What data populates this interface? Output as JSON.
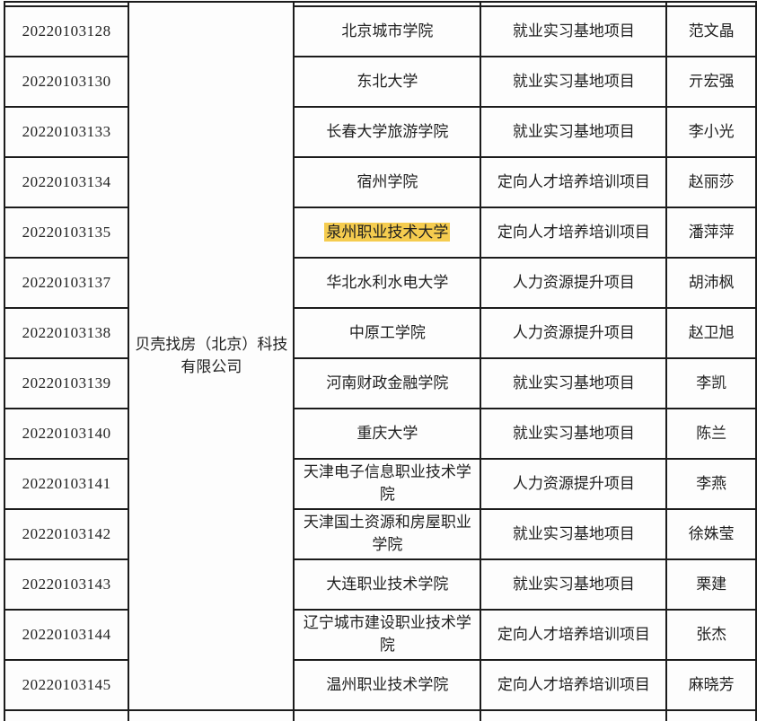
{
  "table": {
    "company": "贝壳找房（北京）科技有限公司",
    "highlight_color": "#F5CC4F",
    "rows": [
      {
        "id": "20220103128",
        "school": "北京城市学院",
        "project": "就业实习基地项目",
        "contact": "范文晶",
        "highlighted": false
      },
      {
        "id": "20220103130",
        "school": "东北大学",
        "project": "就业实习基地项目",
        "contact": "亓宏强",
        "highlighted": false
      },
      {
        "id": "20220103133",
        "school": "长春大学旅游学院",
        "project": "就业实习基地项目",
        "contact": "李小光",
        "highlighted": false
      },
      {
        "id": "20220103134",
        "school": "宿州学院",
        "project": "定向人才培养培训项目",
        "contact": "赵丽莎",
        "highlighted": false
      },
      {
        "id": "20220103135",
        "school": "泉州职业技术大学",
        "project": "定向人才培养培训项目",
        "contact": "潘萍萍",
        "highlighted": true
      },
      {
        "id": "20220103137",
        "school": "华北水利水电大学",
        "project": "人力资源提升项目",
        "contact": "胡沛枫",
        "highlighted": false
      },
      {
        "id": "20220103138",
        "school": "中原工学院",
        "project": "人力资源提升项目",
        "contact": "赵卫旭",
        "highlighted": false
      },
      {
        "id": "20220103139",
        "school": "河南财政金融学院",
        "project": "就业实习基地项目",
        "contact": "李凯",
        "highlighted": false
      },
      {
        "id": "20220103140",
        "school": "重庆大学",
        "project": "就业实习基地项目",
        "contact": "陈兰",
        "highlighted": false
      },
      {
        "id": "20220103141",
        "school": "天津电子信息职业技术学院",
        "project": "人力资源提升项目",
        "contact": "李燕",
        "highlighted": false
      },
      {
        "id": "20220103142",
        "school": "天津国土资源和房屋职业学院",
        "project": "就业实习基地项目",
        "contact": "徐姝莹",
        "highlighted": false
      },
      {
        "id": "20220103143",
        "school": "大连职业技术学院",
        "project": "就业实习基地项目",
        "contact": "栗建",
        "highlighted": false
      },
      {
        "id": "20220103144",
        "school": "辽宁城市建设职业技术学院",
        "project": "定向人才培养培训项目",
        "contact": "张杰",
        "highlighted": false
      },
      {
        "id": "20220103145",
        "school": "温州职业技术学院",
        "project": "定向人才培养培训项目",
        "contact": "麻晓芳",
        "highlighted": false
      }
    ]
  }
}
